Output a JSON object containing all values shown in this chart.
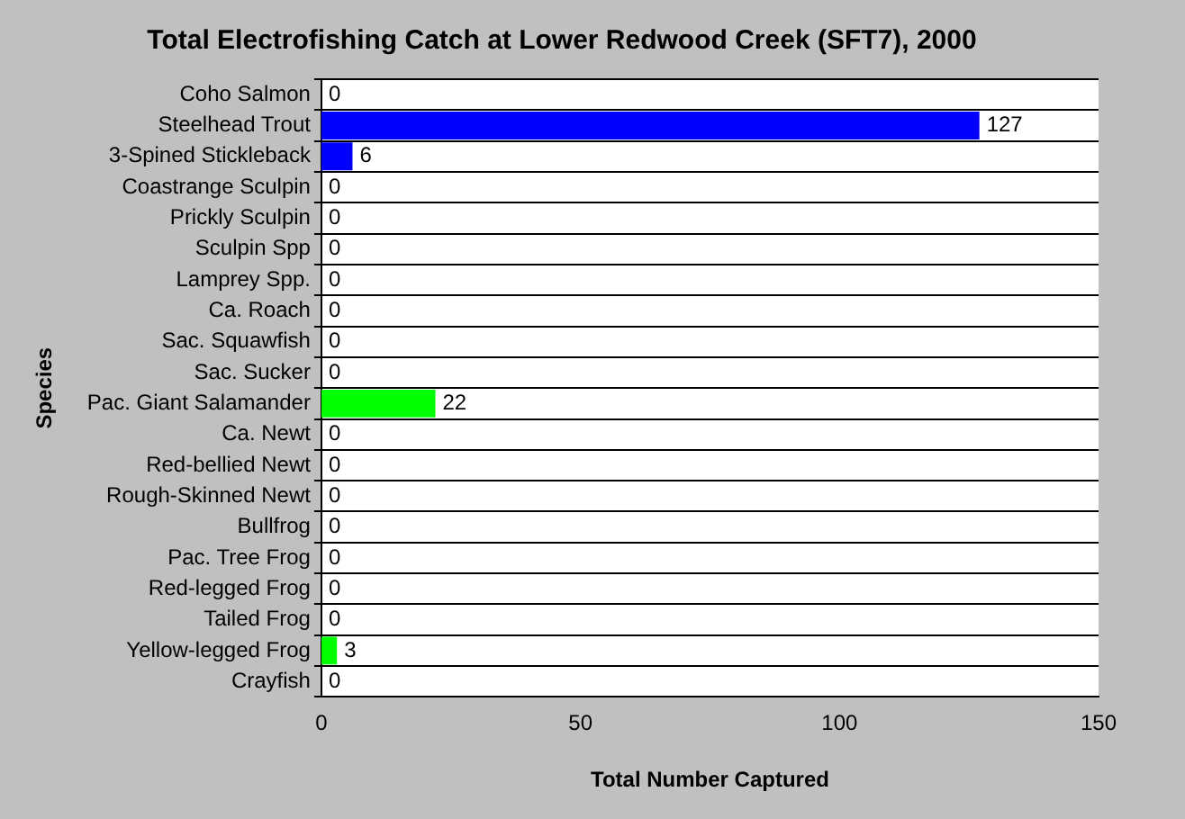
{
  "chart_data": {
    "type": "bar",
    "orientation": "horizontal",
    "title": "Total Electrofishing Catch at Lower Redwood Creek (SFT7), 2000",
    "xlabel": "Total Number Captured",
    "ylabel": "Species",
    "categories": [
      "Coho Salmon",
      "Steelhead Trout",
      "3-Spined Stickleback",
      "Coastrange Sculpin",
      "Prickly Sculpin",
      "Sculpin Spp",
      "Lamprey Spp.",
      "Ca. Roach",
      "Sac. Squawfish",
      "Sac. Sucker",
      "Pac. Giant Salamander",
      "Ca. Newt",
      "Red-bellied Newt",
      "Rough-Skinned Newt",
      "Bullfrog",
      "Pac. Tree Frog",
      "Red-legged Frog",
      "Tailed Frog",
      "Yellow-legged Frog",
      "Crayfish"
    ],
    "values": [
      0,
      127,
      6,
      0,
      0,
      0,
      0,
      0,
      0,
      0,
      22,
      0,
      0,
      0,
      0,
      0,
      0,
      0,
      3,
      0
    ],
    "colors": [
      "#0000ff",
      "#0000ff",
      "#0000ff",
      "#0000ff",
      "#0000ff",
      "#0000ff",
      "#0000ff",
      "#0000ff",
      "#0000ff",
      "#0000ff",
      "#00ff00",
      "#00ff00",
      "#00ff00",
      "#00ff00",
      "#00ff00",
      "#00ff00",
      "#00ff00",
      "#00ff00",
      "#00ff00",
      "#ff0000"
    ],
    "xlim": [
      0,
      150
    ],
    "xticks": [
      0,
      50,
      100,
      150
    ],
    "grid": "y",
    "data_labels": true,
    "legend": false
  }
}
